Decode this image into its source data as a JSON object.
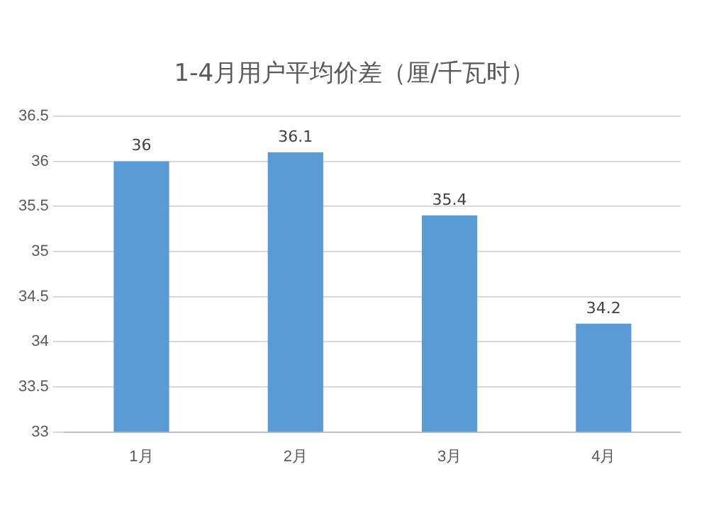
{
  "chart_data": {
    "type": "bar",
    "title": "1-4月用户平均价差（厘/千瓦时）",
    "categories": [
      "1月",
      "2月",
      "3月",
      "4月"
    ],
    "values": [
      36,
      36.1,
      35.4,
      34.2
    ],
    "color": "#5b9bd5",
    "ylim": [
      33,
      36.5
    ],
    "yticks": [
      33,
      33.5,
      34,
      34.5,
      35,
      35.5,
      36,
      36.5
    ],
    "grid": "y",
    "data_labels": true,
    "legend": false
  }
}
